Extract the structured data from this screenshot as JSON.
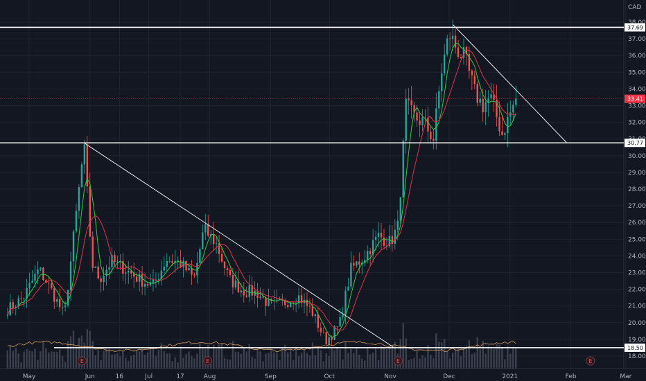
{
  "chart_data": {
    "type": "candlestick",
    "currency": "CAD",
    "x_ticks": [
      "May",
      "Jun",
      "16",
      "Jul",
      "17",
      "Aug",
      "Sep",
      "Oct",
      "Nov",
      "Dec",
      "2021",
      "Feb",
      "Mar"
    ],
    "y_ticks": [
      "18.00",
      "19.00",
      "20.00",
      "21.00",
      "22.00",
      "23.00",
      "24.00",
      "25.00",
      "26.00",
      "27.00",
      "28.00",
      "29.00",
      "30.00",
      "31.00",
      "32.00",
      "33.00",
      "34.00",
      "35.00",
      "36.00",
      "37.00",
      "38.00"
    ],
    "ylim": [
      17.4,
      38.2
    ],
    "last_price": "33.41",
    "horizontal_levels": [
      {
        "value": 37.69,
        "label": "37.69"
      },
      {
        "value": 30.77,
        "label": "30.77"
      },
      {
        "value": 18.5,
        "label": "18.50"
      }
    ],
    "trendlines": [
      {
        "from": {
          "date": "2020-05-29",
          "price": 30.77
        },
        "to": {
          "date": "2020-11-03",
          "price": 18.5
        }
      },
      {
        "from": {
          "date": "2020-12-03",
          "price": 37.85
        },
        "to": {
          "date": "2021-01-30",
          "price": 30.77
        }
      }
    ],
    "earnings_markers": [
      "E",
      "E",
      "E",
      "E"
    ],
    "close_series_keypoints": [
      [
        "2020-04-20",
        20.8
      ],
      [
        "2020-04-28",
        21.5
      ],
      [
        "2020-05-06",
        23.2
      ],
      [
        "2020-05-12",
        22.0
      ],
      [
        "2020-05-19",
        20.4
      ],
      [
        "2020-05-24",
        25.5
      ],
      [
        "2020-05-27",
        28.6
      ],
      [
        "2020-05-29",
        30.6
      ],
      [
        "2020-06-02",
        23.5
      ],
      [
        "2020-06-06",
        22.6
      ],
      [
        "2020-06-12",
        23.7
      ],
      [
        "2020-06-19",
        23.2
      ],
      [
        "2020-06-26",
        22.6
      ],
      [
        "2020-07-03",
        22.2
      ],
      [
        "2020-07-10",
        23.8
      ],
      [
        "2020-07-17",
        23.6
      ],
      [
        "2020-07-24",
        22.6
      ],
      [
        "2020-07-29",
        25.6
      ],
      [
        "2020-08-04",
        24.8
      ],
      [
        "2020-08-11",
        22.6
      ],
      [
        "2020-08-18",
        21.9
      ],
      [
        "2020-08-25",
        21.8
      ],
      [
        "2020-09-01",
        21.0
      ],
      [
        "2020-09-08",
        21.2
      ],
      [
        "2020-09-15",
        21.6
      ],
      [
        "2020-09-22",
        20.7
      ],
      [
        "2020-09-29",
        18.9
      ],
      [
        "2020-10-06",
        19.8
      ],
      [
        "2020-10-12",
        23.2
      ],
      [
        "2020-10-19",
        24.0
      ],
      [
        "2020-10-26",
        25.2
      ],
      [
        "2020-11-01",
        24.8
      ],
      [
        "2020-11-05",
        25.8
      ],
      [
        "2020-11-09",
        33.0
      ],
      [
        "2020-11-13",
        32.3
      ],
      [
        "2020-11-18",
        32.0
      ],
      [
        "2020-11-23",
        31.0
      ],
      [
        "2020-11-27",
        35.0
      ],
      [
        "2020-12-01",
        37.3
      ],
      [
        "2020-12-05",
        36.4
      ],
      [
        "2020-12-09",
        35.8
      ],
      [
        "2020-12-14",
        33.8
      ],
      [
        "2020-12-18",
        33.0
      ],
      [
        "2020-12-22",
        33.5
      ],
      [
        "2020-12-28",
        31.3
      ],
      [
        "2021-01-04",
        33.41
      ]
    ]
  }
}
